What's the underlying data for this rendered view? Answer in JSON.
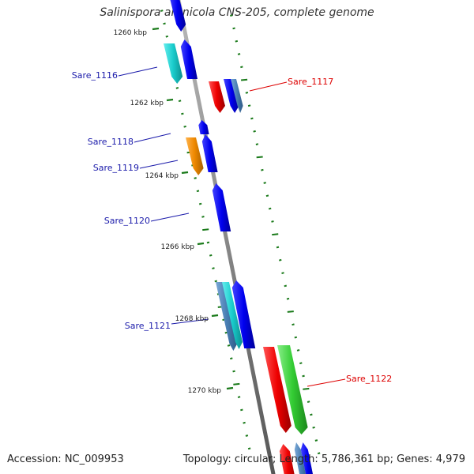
{
  "title": "Salinispora arenicola CNS-205, complete genome",
  "footer": {
    "accession": "Accession: NC_009953",
    "summary": "Topology: circular; Length: 5,786,361 bp; Genes: 4,979"
  },
  "scale_labels": [
    "1260 kbp",
    "1262 kbp",
    "1264 kbp",
    "1266 kbp",
    "1268 kbp",
    "1270 kbp"
  ],
  "genes": [
    {
      "name": "Sare_1116",
      "strand": "forward"
    },
    {
      "name": "Sare_1117",
      "strand": "reverse"
    },
    {
      "name": "Sare_1118",
      "strand": "forward"
    },
    {
      "name": "Sare_1119",
      "strand": "forward"
    },
    {
      "name": "Sare_1120",
      "strand": "forward"
    },
    {
      "name": "Sare_1121",
      "strand": "forward"
    },
    {
      "name": "Sare_1122",
      "strand": "reverse"
    }
  ],
  "colors": {
    "blue": "#0000ee",
    "cyan": "#19cccc",
    "steel": "#4a7fb4",
    "red": "#ee0000",
    "green": "#33cc33",
    "orange": "#ee8800",
    "tick": "#1a7a1a",
    "backbone": "#888888",
    "label_forward": "#1a1aaa",
    "label_reverse": "#dd0000"
  }
}
